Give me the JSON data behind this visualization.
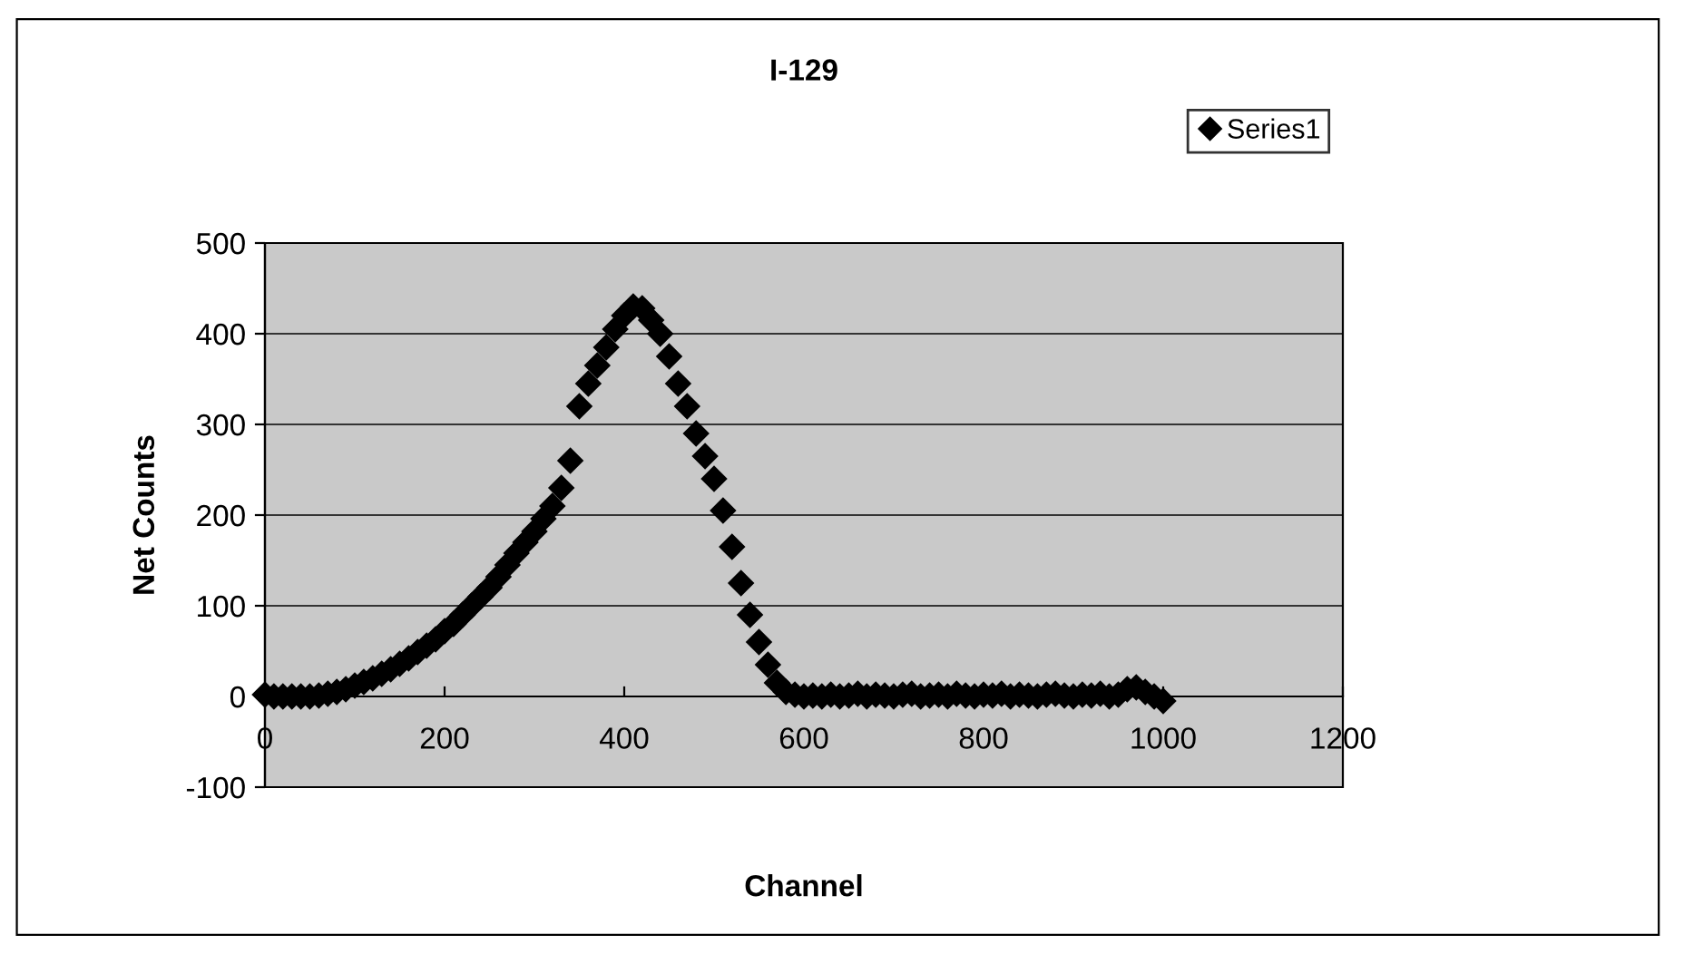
{
  "chart_data": {
    "type": "scatter",
    "title": "I-129",
    "xlabel": "Channel",
    "ylabel": "Net Counts",
    "xlim": [
      0,
      1200
    ],
    "xticks": [
      0,
      200,
      400,
      600,
      800,
      1000,
      1200
    ],
    "ylim": [
      -100,
      500
    ],
    "yticks": [
      -100,
      0,
      100,
      200,
      300,
      400,
      500
    ],
    "grid": "y",
    "legend": "top right",
    "marker": "diamond",
    "x": [
      0,
      10,
      20,
      30,
      40,
      50,
      60,
      70,
      80,
      90,
      100,
      110,
      120,
      130,
      140,
      150,
      160,
      170,
      180,
      190,
      200,
      210,
      220,
      230,
      240,
      250,
      260,
      270,
      280,
      290,
      300,
      310,
      320,
      330,
      340,
      350,
      360,
      370,
      380,
      390,
      400,
      410,
      420,
      430,
      440,
      450,
      460,
      470,
      480,
      490,
      500,
      510,
      520,
      530,
      540,
      550,
      560,
      570,
      580,
      590,
      600,
      610,
      620,
      630,
      640,
      650,
      660,
      670,
      680,
      690,
      700,
      710,
      720,
      730,
      740,
      750,
      760,
      770,
      780,
      790,
      800,
      810,
      820,
      830,
      840,
      850,
      860,
      870,
      880,
      890,
      900,
      910,
      920,
      930,
      940,
      950,
      960,
      970,
      980,
      990,
      1000
    ],
    "series": [
      {
        "name": "Series1",
        "color": "#000000",
        "values": [
          2,
          0,
          0,
          0,
          0,
          0,
          1,
          3,
          5,
          8,
          12,
          16,
          20,
          25,
          30,
          36,
          42,
          49,
          56,
          63,
          72,
          80,
          90,
          100,
          110,
          120,
          132,
          145,
          158,
          170,
          182,
          196,
          210,
          230,
          260,
          320,
          345,
          365,
          385,
          405,
          420,
          430,
          428,
          415,
          400,
          375,
          345,
          320,
          290,
          265,
          240,
          205,
          165,
          125,
          90,
          60,
          35,
          15,
          5,
          2,
          0,
          1,
          0,
          2,
          0,
          1,
          3,
          0,
          2,
          1,
          0,
          2,
          3,
          0,
          1,
          2,
          0,
          3,
          1,
          0,
          2,
          1,
          3,
          0,
          2,
          1,
          0,
          2,
          3,
          1,
          0,
          2,
          1,
          3,
          0,
          2,
          8,
          10,
          5,
          0,
          -5
        ]
      }
    ]
  }
}
